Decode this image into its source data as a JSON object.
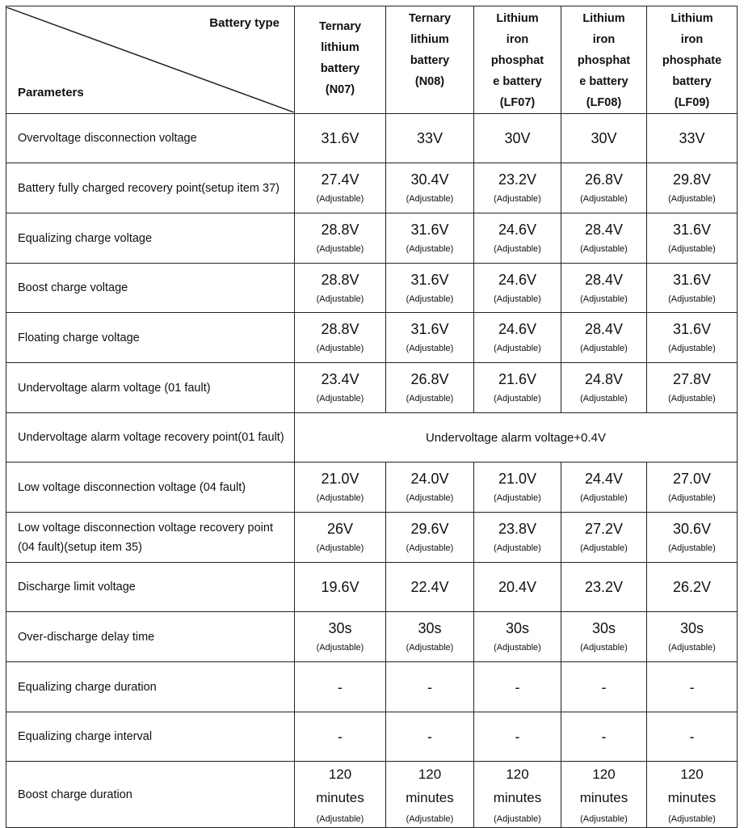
{
  "header": {
    "corner_top": "Battery type",
    "corner_bottom": "Parameters",
    "columns": [
      {
        "lines": [
          "Ternary",
          "lithium",
          "battery",
          "(N07)"
        ],
        "top_pad": true
      },
      {
        "lines": [
          "Ternary",
          "lithium",
          "battery",
          "(N08)"
        ]
      },
      {
        "lines": [
          "Lithium",
          "iron",
          "phosphat",
          "e battery",
          "(LF07)"
        ]
      },
      {
        "lines": [
          "Lithium",
          "iron",
          "phosphat",
          "e battery",
          "(LF08)"
        ]
      },
      {
        "lines": [
          "Lithium",
          "iron",
          "phosphate",
          "battery",
          "(LF09)"
        ]
      }
    ]
  },
  "adjustable_label": "(Adjustable)",
  "rows": [
    {
      "param": "Overvoltage disconnection voltage",
      "values": [
        "31.6V",
        "33V",
        "30V",
        "30V",
        "33V"
      ],
      "adjustable": false
    },
    {
      "param": "Battery fully charged recovery point(setup item 37)",
      "values": [
        "27.4V",
        "30.4V",
        "23.2V",
        "26.8V",
        "29.8V"
      ],
      "adjustable": true
    },
    {
      "param": "Equalizing charge voltage",
      "values": [
        "28.8V",
        "31.6V",
        "24.6V",
        "28.4V",
        "31.6V"
      ],
      "adjustable": true
    },
    {
      "param": "Boost charge voltage",
      "values": [
        "28.8V",
        "31.6V",
        "24.6V",
        "28.4V",
        "31.6V"
      ],
      "adjustable": true
    },
    {
      "param": "Floating charge voltage",
      "values": [
        "28.8V",
        "31.6V",
        "24.6V",
        "28.4V",
        "31.6V"
      ],
      "adjustable": true
    },
    {
      "param": "Undervoltage alarm voltage (01 fault)",
      "values": [
        "23.4V",
        "26.8V",
        "21.6V",
        "24.8V",
        "27.8V"
      ],
      "adjustable": true
    },
    {
      "param": "Undervoltage alarm voltage recovery point(01 fault)",
      "merged": "Undervoltage alarm voltage+0.4V"
    },
    {
      "param": "Low voltage disconnection voltage (04 fault)",
      "values": [
        "21.0V",
        "24.0V",
        "21.0V",
        "24.4V",
        "27.0V"
      ],
      "adjustable": true
    },
    {
      "param": "Low voltage disconnection voltage recovery point (04 fault)(setup item 35)",
      "values": [
        "26V",
        "29.6V",
        "23.8V",
        "27.2V",
        "30.6V"
      ],
      "adjustable": true
    },
    {
      "param": "Discharge limit voltage",
      "values": [
        "19.6V",
        "22.4V",
        "20.4V",
        "23.2V",
        "26.2V"
      ],
      "adjustable": false
    },
    {
      "param": "Over-discharge delay time",
      "values": [
        "30s",
        "30s",
        "30s",
        "30s",
        "30s"
      ],
      "adjustable": true
    },
    {
      "param": "Equalizing charge duration",
      "values": [
        "-",
        "-",
        "-",
        "-",
        "-"
      ],
      "adjustable": false
    },
    {
      "param": "Equalizing charge interval",
      "values": [
        "-",
        "-",
        "-",
        "-",
        "-"
      ],
      "adjustable": false
    },
    {
      "param": "Boost charge duration",
      "values": [
        "120 minutes",
        "120 minutes",
        "120 minutes",
        "120 minutes",
        "120 minutes"
      ],
      "adjustable": true
    }
  ]
}
